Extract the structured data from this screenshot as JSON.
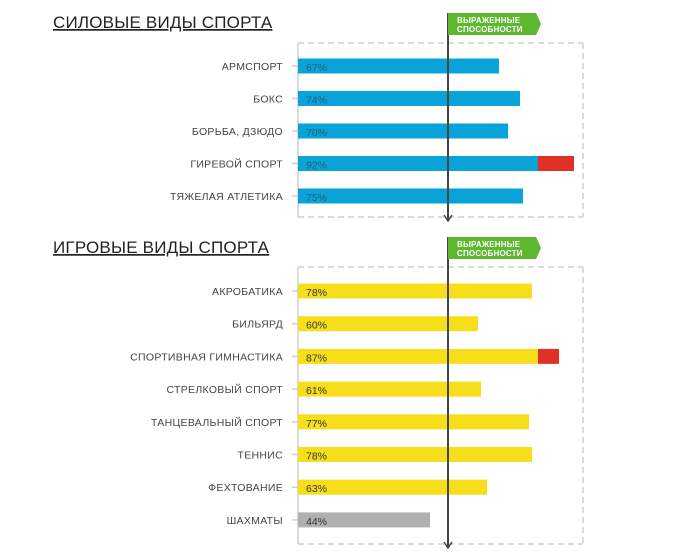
{
  "colors": {
    "blue": "#0aa3d8",
    "yellow": "#f7de1b",
    "gray": "#b0b0b0",
    "red": "#e03127",
    "green": "#5cb82e",
    "grid": "#cfcfcf",
    "axis": "#444444"
  },
  "chart_data": [
    {
      "type": "bar",
      "orientation": "horizontal",
      "title": "СИЛОВЫЕ ВИДЫ СПОРТА",
      "threshold_label": [
        "ВЫРАЖЕННЫЕ",
        "СПОСОБНОСТИ"
      ],
      "threshold_value": 50,
      "xlim": [
        0,
        100
      ],
      "categories": [
        "АРМСПОРТ",
        "БОКС",
        "БОРЬБА, ДЗЮДО",
        "ГИРЕВОЙ СПОРТ",
        "ТЯЖЕЛАЯ АТЛЕТИКА"
      ],
      "values": [
        67,
        74,
        70,
        92,
        75
      ],
      "labels": [
        "67%",
        "74%",
        "70%",
        "92%",
        "75%"
      ],
      "bar_colors": [
        "blue",
        "blue",
        "blue",
        "blue",
        "blue"
      ],
      "red_start": 80
    },
    {
      "type": "bar",
      "orientation": "horizontal",
      "title": "ИГРОВЫЕ ВИДЫ СПОРТА",
      "threshold_label": [
        "ВЫРАЖЕННЫЕ",
        "СПОСОБНОСТИ"
      ],
      "threshold_value": 50,
      "xlim": [
        0,
        100
      ],
      "categories": [
        "АКРОБАТИКА",
        "БИЛЬЯРД",
        "СПОРТИВНАЯ ГИМНАСТИКА",
        "СТРЕЛКОВЫЙ СПОРТ",
        "ТАНЦЕВАЛЬНЫЙ СПОРТ",
        "ТЕННИС",
        "ФЕХТОВАНИЕ",
        "ШАХМАТЫ"
      ],
      "values": [
        78,
        60,
        87,
        61,
        77,
        78,
        63,
        44
      ],
      "labels": [
        "78%",
        "60%",
        "87%",
        "61%",
        "77%",
        "78%",
        "63%",
        "44%"
      ],
      "bar_colors": [
        "yellow",
        "yellow",
        "yellow",
        "yellow",
        "yellow",
        "yellow",
        "yellow",
        "gray"
      ],
      "red_start": 80
    }
  ]
}
